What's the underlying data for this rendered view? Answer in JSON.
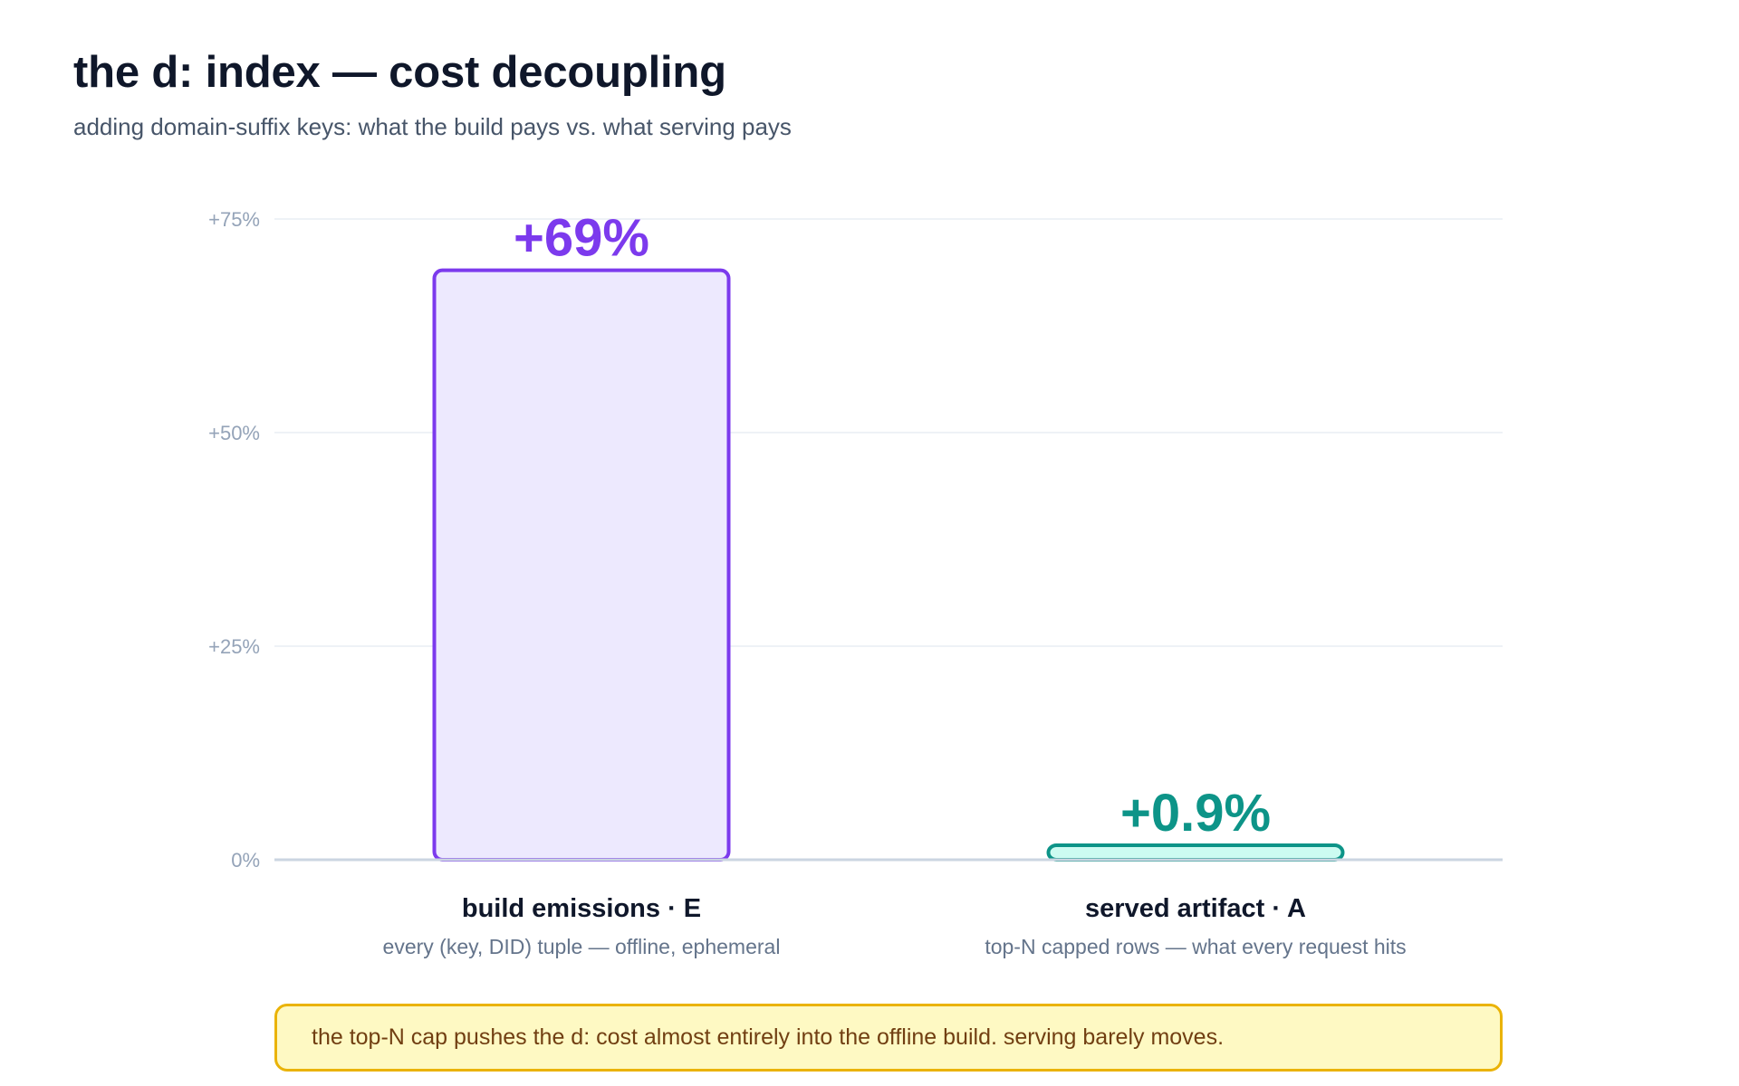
{
  "header": {
    "title": "the d: index — cost decoupling",
    "subtitle": "adding domain-suffix keys: what the build pays vs. what serving pays"
  },
  "chart_data": {
    "type": "bar",
    "title": "the d: index — cost decoupling",
    "subtitle": "adding domain-suffix keys: what the build pays vs. what serving pays",
    "xlabel": "",
    "ylabel": "",
    "ylim": [
      0,
      75
    ],
    "yticks": [
      0,
      25,
      50,
      75
    ],
    "ytick_labels": [
      "0%",
      "+25%",
      "+50%",
      "+75%"
    ],
    "grid": true,
    "categories": [
      "build emissions · E",
      "served artifact · A"
    ],
    "category_descriptions": [
      "every (key, DID) tuple — offline, ephemeral",
      "top-N capped rows — what every request hits"
    ],
    "values": [
      69,
      0.9
    ],
    "data_labels": [
      "+69%",
      "+0.9%"
    ],
    "bar_colors": [
      {
        "fill": "#ede9fe",
        "stroke": "#7c3aed",
        "label": "#7c3aed"
      },
      {
        "fill": "#ccfbf1",
        "stroke": "#0d9488",
        "label": "#0d9488"
      }
    ],
    "colors": {
      "grid": "#e9edf3",
      "axis": "#cbd5e1",
      "tick_text": "#94a3b8",
      "category_text": "#0f172a",
      "description_text": "#64748b"
    }
  },
  "callout": {
    "text": "the top-N cap pushes the d: cost almost entirely into the offline build. serving barely moves."
  }
}
